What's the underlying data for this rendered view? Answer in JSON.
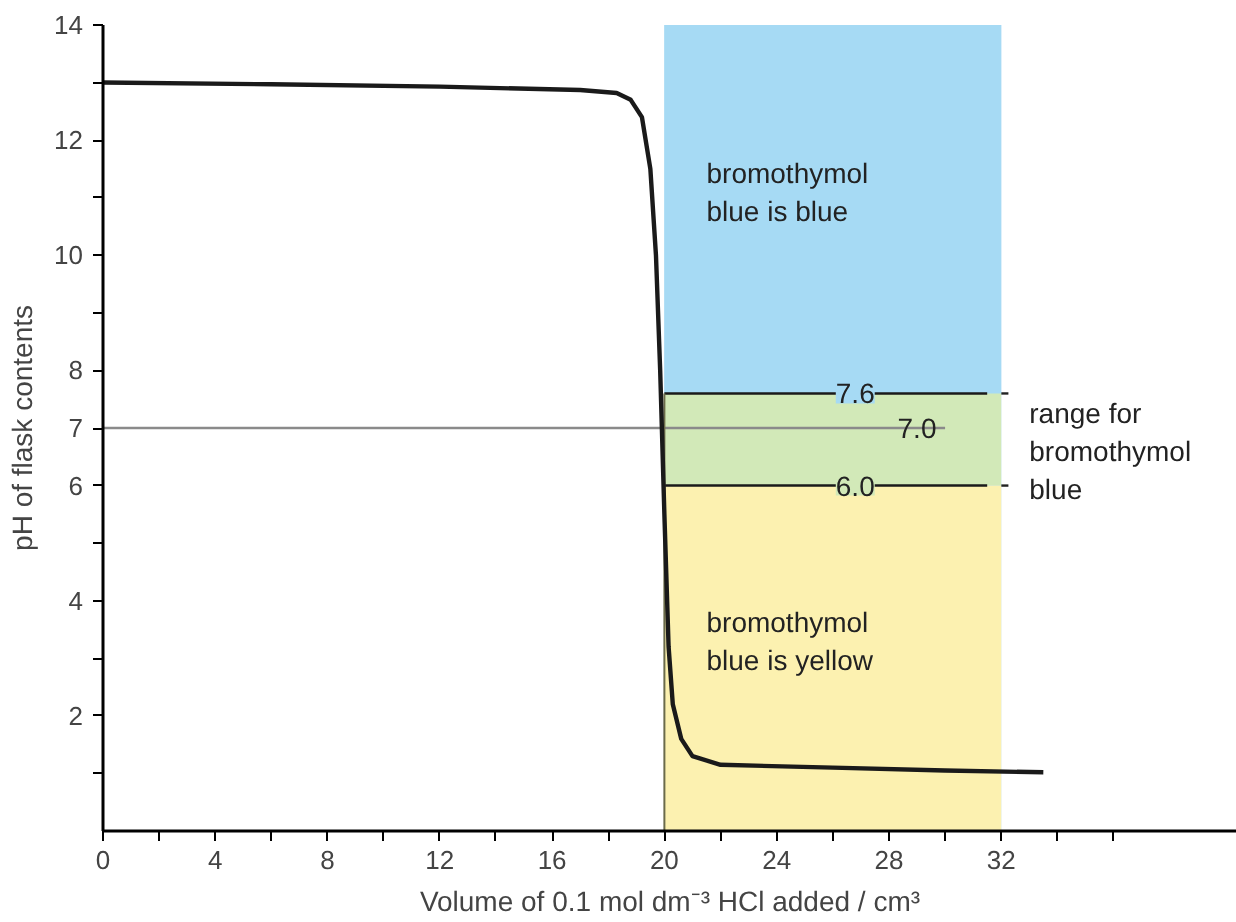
{
  "chart_data": {
    "type": "line",
    "xlabel": "Volume of 0.1 mol dm⁻³ HCl added / cm³",
    "ylabel": "pH of flask contents",
    "x": [
      0,
      6,
      12,
      17,
      18.3,
      18.8,
      19.2,
      19.5,
      19.7,
      19.85,
      20.0,
      20.15,
      20.3,
      20.6,
      21,
      22,
      26,
      30,
      33.5
    ],
    "series": [
      {
        "color": "#1a1a1a",
        "values": [
          13.0,
          12.97,
          12.93,
          12.87,
          12.82,
          12.7,
          12.4,
          11.5,
          10.0,
          8.0,
          5.5,
          3.2,
          2.2,
          1.6,
          1.3,
          1.15,
          1.1,
          1.05,
          1.02
        ]
      }
    ],
    "xlim": [
      0,
      40.4
    ],
    "ylim": [
      0,
      14
    ],
    "xticks": [
      0,
      {
        "value": 2,
        "label": null
      },
      4,
      {
        "value": 6,
        "label": null
      },
      8,
      {
        "value": 10,
        "label": null
      },
      12,
      {
        "value": 14,
        "label": null
      },
      16,
      {
        "value": 18,
        "label": null
      },
      20,
      {
        "value": 22,
        "label": null
      },
      24,
      {
        "value": 26,
        "label": null
      },
      28,
      {
        "value": 30,
        "label": null
      },
      32,
      {
        "value": 34,
        "label": null
      },
      {
        "value": 36,
        "label": null
      }
    ],
    "yticks": [
      {
        "value": 1,
        "label": null
      },
      2,
      {
        "value": 3,
        "label": null
      },
      4,
      {
        "value": 5,
        "label": null
      },
      6,
      7,
      8,
      {
        "value": 9,
        "label": null
      },
      10,
      {
        "value": 11,
        "label": null
      },
      12,
      {
        "value": 13,
        "label": null
      },
      14
    ],
    "bands": [
      {
        "axis": "x",
        "from": 20,
        "to": 32,
        "color": "#a6daf4"
      },
      {
        "axis": "y",
        "from": 7.6,
        "to": 14,
        "label": "bromothymol blue is blue",
        "color": "#a6daf4"
      },
      {
        "axis": "y",
        "from": 6.0,
        "to": 7.6,
        "label": "range for bromothymol blue",
        "color": "#d2e9b8"
      },
      {
        "axis": "y",
        "from": 0,
        "to": 6.0,
        "label": "bromothymol blue is yellow",
        "color": "#fcf1b0"
      }
    ],
    "ref_lines": [
      {
        "axis": "y",
        "value": 7.0,
        "label": "7.0",
        "color": "#8a8a8a"
      },
      {
        "axis": "y",
        "value": 7.6,
        "label": "7.6",
        "color": "#1a1a1a"
      },
      {
        "axis": "y",
        "value": 6.0,
        "label": "6.0",
        "color": "#1a1a1a"
      },
      {
        "axis": "x",
        "value": 20,
        "color": "#6b6b4a"
      }
    ],
    "grid": false,
    "marker": "none",
    "line_style": "solid"
  }
}
